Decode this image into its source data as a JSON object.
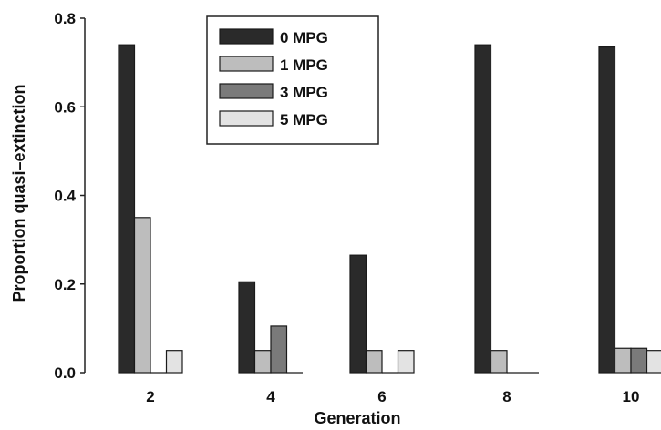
{
  "chart_data": {
    "type": "bar",
    "xlabel": "Generation",
    "ylabel": "Proportion quasi–extinction",
    "categories": [
      "2",
      "4",
      "6",
      "8",
      "10"
    ],
    "ylim": [
      0,
      0.8
    ],
    "yticks": [
      "0.0",
      "0.2",
      "0.4",
      "0.6",
      "0.8"
    ],
    "legend_position": "top-center",
    "series": [
      {
        "name": "0 MPG",
        "color": "#2a2a2a",
        "values": [
          0.74,
          0.205,
          0.265,
          0.74,
          0.735
        ]
      },
      {
        "name": "1 MPG",
        "color": "#bdbdbd",
        "values": [
          0.35,
          0.05,
          0.05,
          0.05,
          0.055
        ]
      },
      {
        "name": "3 MPG",
        "color": "#7a7a7a",
        "values": [
          0.0,
          0.105,
          0.0,
          0.0,
          0.055
        ]
      },
      {
        "name": "5 MPG",
        "color": "#e3e3e3",
        "values": [
          0.05,
          0.0,
          0.05,
          0.0,
          0.05
        ]
      }
    ]
  }
}
